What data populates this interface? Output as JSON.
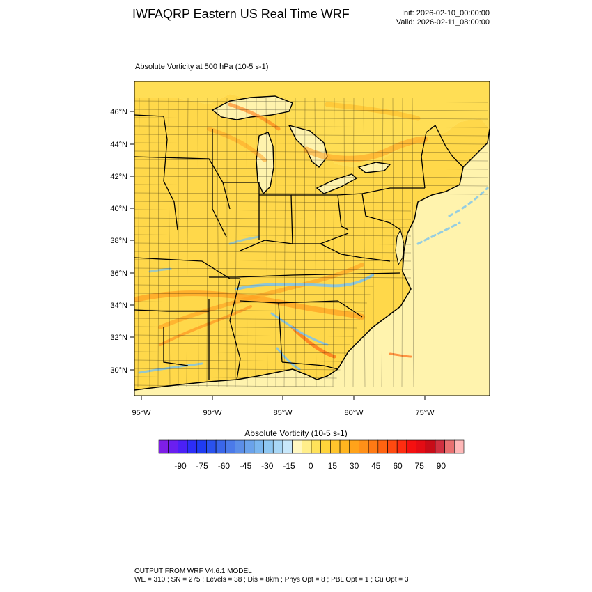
{
  "title": "IWFAQRP Eastern US Real Time WRF",
  "init_label": "Init: 2026-02-10_00:00:00",
  "valid_label": "Valid: 2026-02-11_08:00:00",
  "field_title": "Absolute Vorticity at 500 hPa   (10-5 s-1)",
  "map": {
    "lat_labels": [
      "46°N",
      "44°N",
      "42°N",
      "40°N",
      "38°N",
      "36°N",
      "34°N",
      "32°N",
      "30°N"
    ],
    "lon_labels": [
      "95°W",
      "90°W",
      "85°W",
      "80°W",
      "75°W"
    ],
    "colors": {
      "ocean": "#fff3ad",
      "land": "#ffd84a",
      "land_pale": "#ffe57a",
      "positive": "#ff9e1f",
      "strong_positive": "#ff6a12",
      "negative": "#7bc3ee",
      "border": "#000000"
    }
  },
  "colorbar": {
    "title": "Absolute Vorticity  (10-5 s-1)",
    "labels": [
      "-90",
      "-75",
      "-60",
      "-45",
      "-30",
      "-15",
      "0",
      "15",
      "30",
      "45",
      "60",
      "75",
      "90"
    ],
    "colors": [
      "#7e1ee6",
      "#6a1ff0",
      "#4b20f6",
      "#2c2ef8",
      "#1f3cf2",
      "#2a52ee",
      "#3a66ea",
      "#4b7ae9",
      "#5b8ee8",
      "#6aa2eb",
      "#7ab6ef",
      "#8ec7f2",
      "#a8d7f6",
      "#c7e7fa",
      "#fff7c0",
      "#ffee8a",
      "#ffe25a",
      "#ffd43b",
      "#ffc52c",
      "#ffb51f",
      "#ffa31a",
      "#ff9018",
      "#ff7a14",
      "#ff6310",
      "#ff4a10",
      "#ff2d10",
      "#f51010",
      "#e40c14",
      "#c80c18",
      "#d03040",
      "#e87070",
      "#ffb8b8"
    ]
  },
  "footer": {
    "line1": "OUTPUT FROM WRF V4.6.1 MODEL",
    "line2": "WE = 310 ; SN = 275 ; Levels = 38 ; Dis = 8km ; Phys Opt = 8 ; PBL Opt = 1 ; Cu Opt = 3"
  }
}
